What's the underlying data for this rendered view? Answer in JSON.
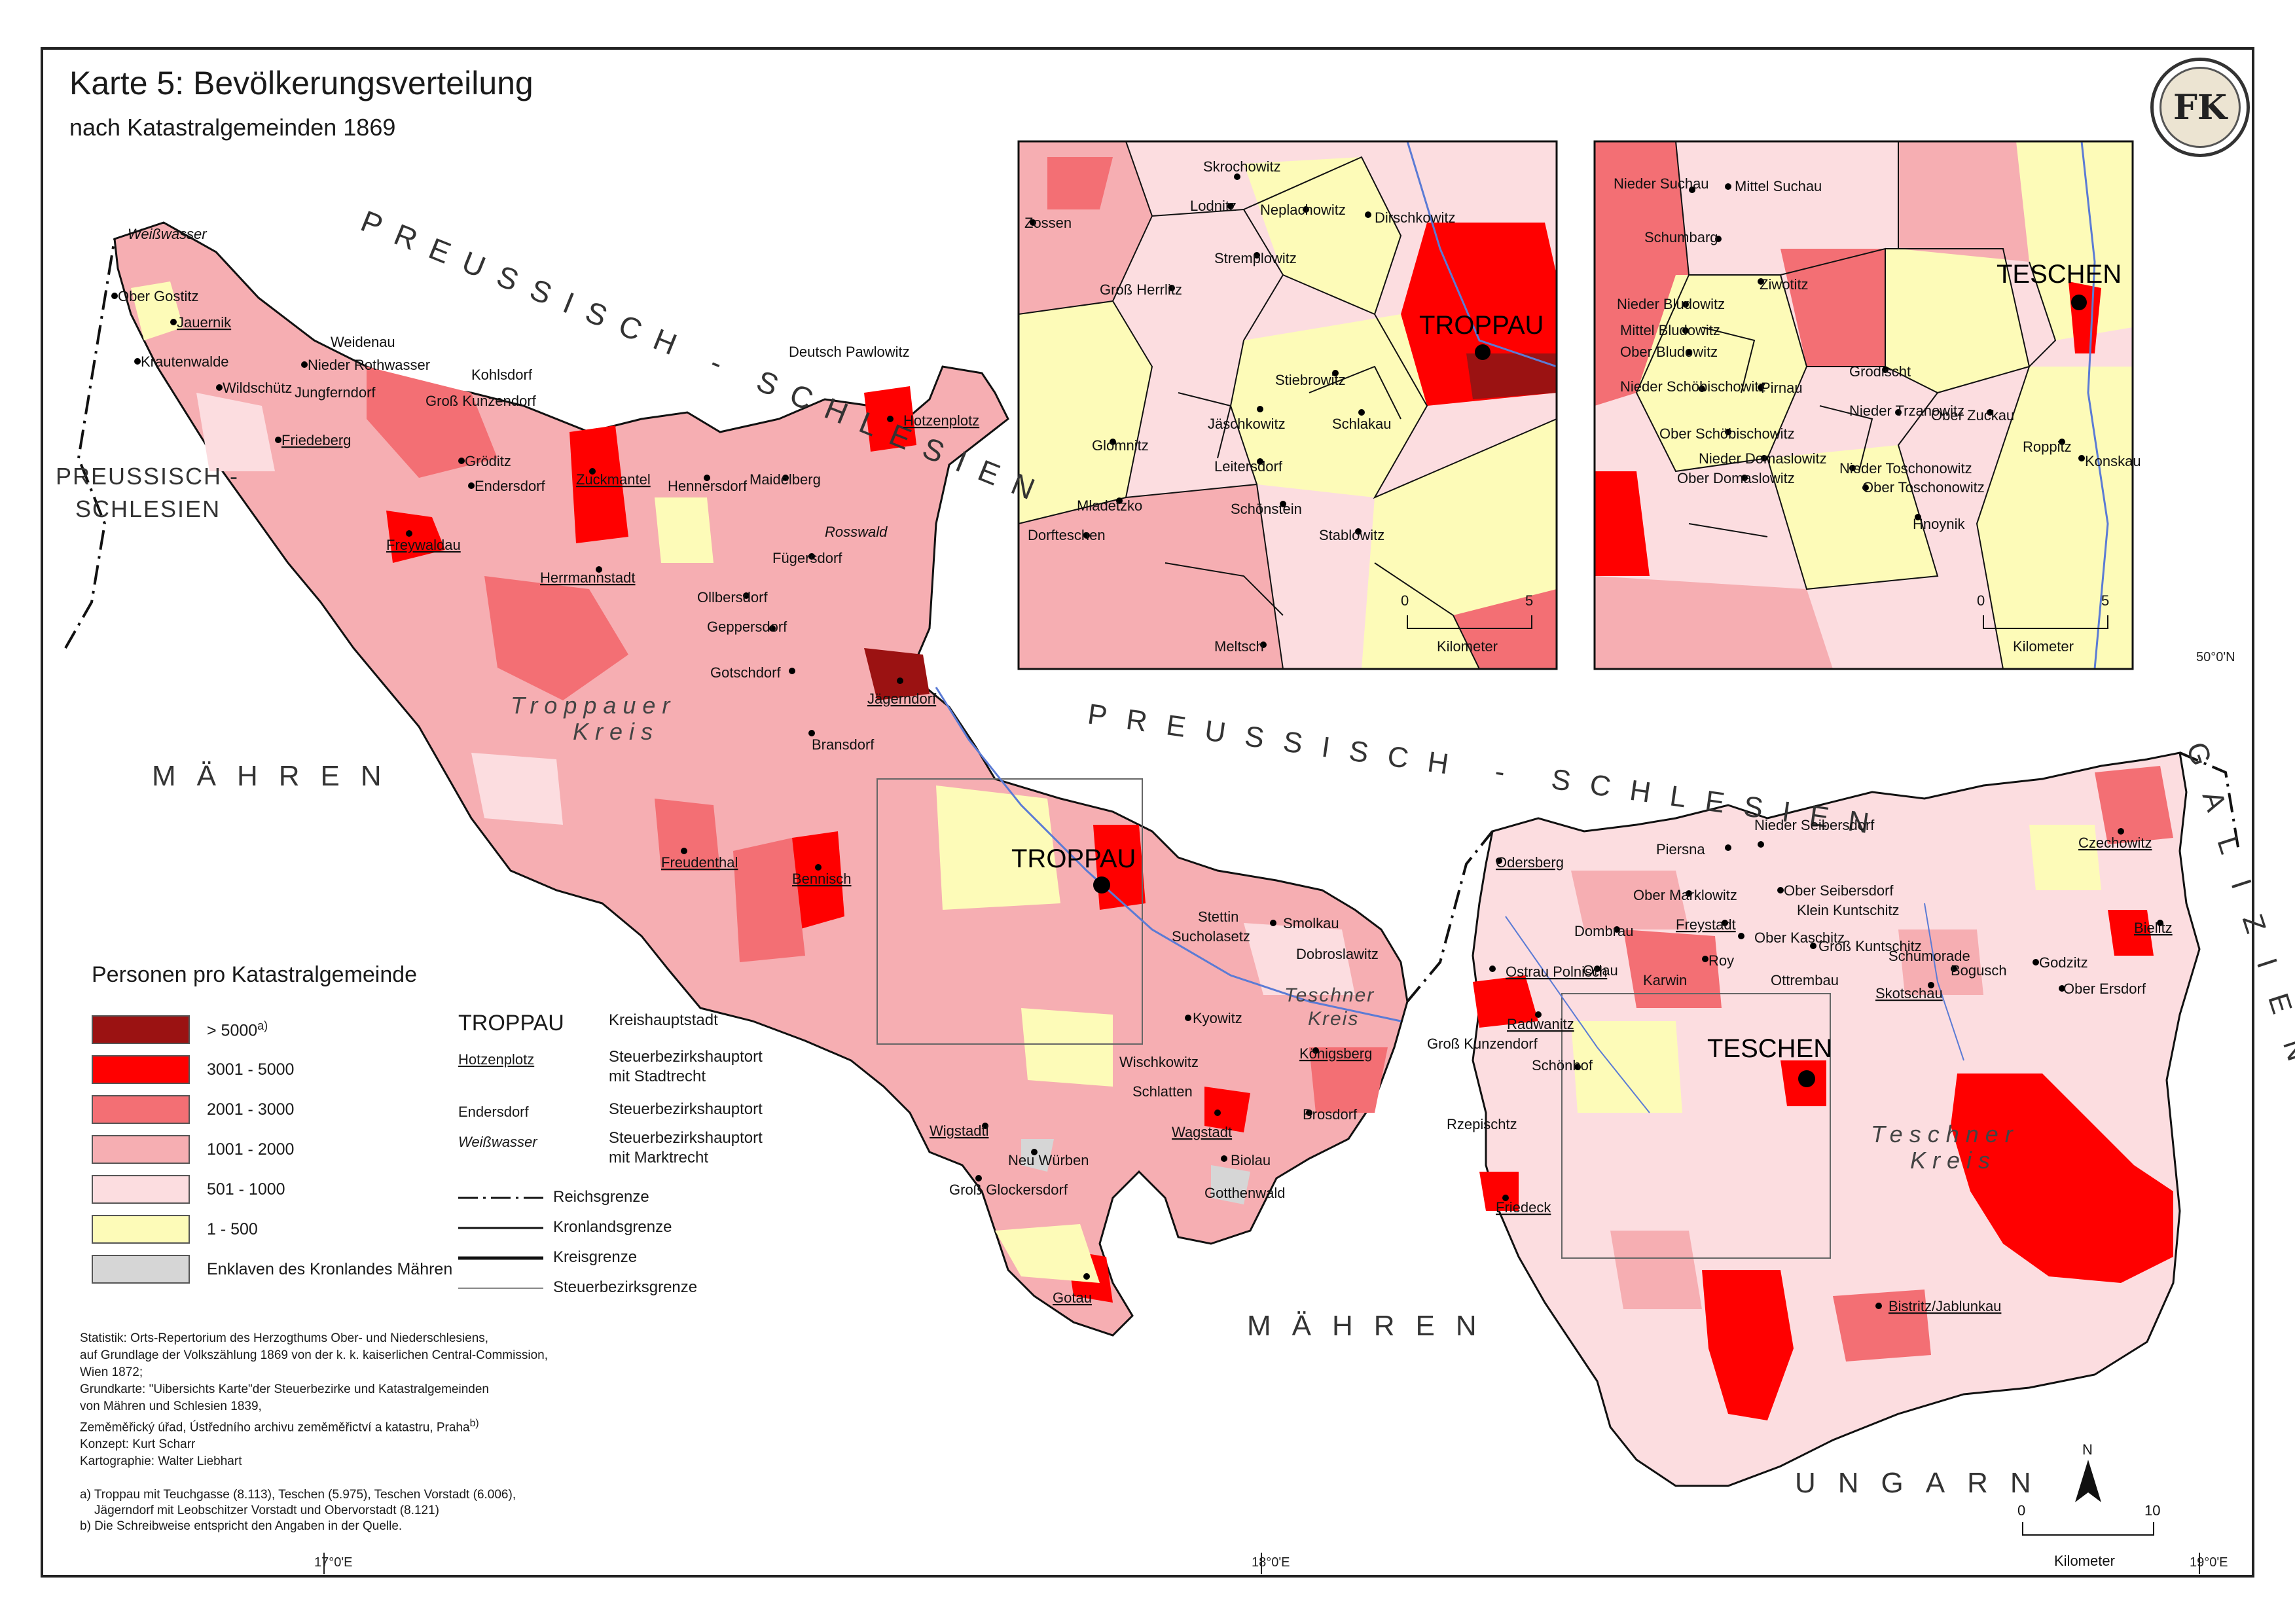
{
  "title": "Karte 5: Bevölkerungsverteilung",
  "subtitle": "nach Katastralgemeinden 1869",
  "logo_text": "FK",
  "regions": {
    "preussen_top": "PREUSSISCH - SCHLESIEN",
    "preussen_left_1": "PREUSSISCH -",
    "preussen_left_2": "SCHLESIEN",
    "preussen_center": "PREUSSISCH - SCHLESIEN",
    "maehren_west": "MÄHREN",
    "maehren_south": "MÄHREN",
    "ungarn": "UNGARN",
    "galizien": "GALIZIEN",
    "troppauer_kreis_1": "Troppauer",
    "troppauer_kreis_2": "Kreis",
    "teschner_kreis_small_1": "Teschner",
    "teschner_kreis_small_2": "Kreis",
    "teschner_kreis_1": "Teschner",
    "teschner_kreis_2": "Kreis"
  },
  "cities": {
    "troppau": "TROPPAU",
    "teschen": "TESCHEN"
  },
  "places": {
    "weisswasser": "Weißwasser",
    "ober_gostitz": "Ober Gostitz",
    "jauernik": "Jauernik",
    "krautenwalde": "Krautenwalde",
    "weidenau": "Weidenau",
    "nieder_rothwasser": "Nieder Rothwasser",
    "wildschuetz": "Wildschütz",
    "jungferndorf": "Jungferndorf",
    "gross_kunzendorf": "Groß Kunzendorf",
    "kohlsdorf": "Kohlsdorf",
    "friedeberg": "Friedeberg",
    "groeditz": "Gröditz",
    "endersdorf": "Endersdorf",
    "zuckmantel": "Zuckmantel",
    "freywaldau": "Freywaldau",
    "hennersdorf": "Hennersdorf",
    "maidelberg": "Maidelberg",
    "rosswald": "Rosswald",
    "hotzenplotz": "Hotzenplotz",
    "deutsch_pawlowitz": "Deutsch Pawlowitz",
    "fuegersdorf": "Fügersdorf",
    "herrmannstadt": "Herrmannstadt",
    "ollbersdorf": "Ollbersdorf",
    "geppersdorf": "Geppersdorf",
    "gotschdorf": "Gotschdorf",
    "jaegerndorf": "Jägerndorf",
    "bransdorf": "Bransdorf",
    "freudenthal": "Freudenthal",
    "bennisch": "Bennisch",
    "stettin": "Stettin",
    "sucholasetz": "Sucholasetz",
    "smolkau": "Smolkau",
    "dobroslawitz": "Dobroslawitz",
    "kyowitz": "Kyowitz",
    "koenigsberg": "Königsberg",
    "wischkowitz": "Wischkowitz",
    "schlatten": "Schlatten",
    "wagstadt": "Wagstadt",
    "brosdorf": "Brosdorf",
    "wigstadtl": "Wigstadtl",
    "neu_wuerben": "Neu Würben",
    "gross_glockersdorf": "Groß Glockersdorf",
    "biolau": "Biolau",
    "gotthenwald": "Gotthenwald",
    "gotau": "Gotau",
    "odersberg": "Odersberg",
    "piersna": "Piersna",
    "nieder_seibersdorf": "Nieder Seibersdorf",
    "ober_marklowitz": "Ober Marklowitz",
    "ober_seibersdorf": "Ober Seibersdorf",
    "klein_kuntschitz": "Klein Kuntschitz",
    "dombrau": "Dombrau",
    "freystadt": "Freystadt",
    "ober_kaschitz": "Ober Kaschitz",
    "gross_kuntschitz": "Groß Kuntschitz",
    "orlau": "Orlau",
    "karwin": "Karwin",
    "roy": "Roy",
    "ottrembau": "Ottrembau",
    "schumorade": "Schumorade",
    "skotschau": "Skotschau",
    "bogusch": "Bogusch",
    "godzitz": "Godzitz",
    "ober_ersdorf": "Ober Ersdorf",
    "czechowitz": "Czechowitz",
    "bielitz": "Bielitz",
    "ostrau_polnisch": "Ostrau Polnisch",
    "radwanitz": "Radwanitz",
    "gross_kunzendorf2": "Groß Kunzendorf",
    "schoenhof": "Schönhof",
    "rzepischtz": "Rzepischtz",
    "friedeck": "Friedeck",
    "bistrasitz": "Bistritz/Jablunkau"
  },
  "inset_troppau": {
    "places": [
      "Zossen",
      "Skrochowitz",
      "Lodnitz",
      "Neplachowitz",
      "Dirschkowitz",
      "Groß Herrlitz",
      "Stremplowitz",
      "Stiebrowitz",
      "Glomnitz",
      "Jäschkowitz",
      "Schlakau",
      "Leitersdorf",
      "Mladetzko",
      "Schönstein",
      "Dorfteschen",
      "Stablowitz",
      "Meltsch"
    ],
    "scale": {
      "zero": "0",
      "max": "5",
      "unit": "Kilometer"
    }
  },
  "inset_teschen": {
    "places": [
      "Nieder Suchau",
      "Mittel Suchau",
      "Schumbarg",
      "Ziwotitz",
      "Nieder Bludowitz",
      "Mittel Bludowitz",
      "Ober Bludowitz",
      "Grodischt",
      "Nieder Schöbischowitz",
      "Pirnau",
      "Ober Schöbischowitz",
      "Nieder Trzanowitz",
      "Ober Zuckau",
      "Roppitz",
      "Konskau",
      "Nieder Domaslowitz",
      "Nieder Toschonowitz",
      "Ober Domaslowitz",
      "Ober Toschonowitz",
      "Hnoynik"
    ],
    "scale": {
      "zero": "0",
      "max": "5",
      "unit": "Kilometer"
    }
  },
  "coords": {
    "lon_17": "17°0'E",
    "lon_18": "18°0'E",
    "lon_19": "19°0'E",
    "lat_50": "50°0'N"
  },
  "main_scale": {
    "zero": "0",
    "max": "10",
    "unit": "Kilometer",
    "north": "N"
  },
  "legend": {
    "title": "Personen pro Katastralgemeinde",
    "classes": [
      {
        "label": "> 5000",
        "sup": "a)",
        "color": "#9b1212"
      },
      {
        "label": "3001 - 5000",
        "color": "#ff0000"
      },
      {
        "label": "2001 - 3000",
        "color": "#f36f74"
      },
      {
        "label": "1001 - 2000",
        "color": "#f6aeb2"
      },
      {
        "label": "501 - 1000",
        "color": "#fcdde0"
      },
      {
        "label": "1 - 500",
        "color": "#fdfbb8"
      },
      {
        "label": "Enklaven des Kronlandes Mähren",
        "color": "#d6d6d6"
      }
    ],
    "symbols": [
      {
        "sample": "TROPPAU",
        "desc": "Kreishauptstadt"
      },
      {
        "sample": "Hotzenplotz",
        "desc1": "Steuerbezirkshauptort",
        "desc2": "mit Stadtrecht"
      },
      {
        "sample": "Endersdorf",
        "desc": "Steuerbezirkshauptort"
      },
      {
        "sample": "Weißwasser",
        "desc1": "Steuerbezirkshauptort",
        "desc2": "mit Marktrecht"
      }
    ],
    "lines": [
      "Reichsgrenze",
      "Kronlandsgrenze",
      "Kreisgrenze",
      "Steuerbezirksgrenze"
    ]
  },
  "notes": [
    "Statistik: Orts-Repertorium des Herzogthums Ober- und Niederschlesiens,",
    "auf Grundlage der Volkszählung 1869 von der k. k. kaiserlichen Central-Commission,",
    "Wien 1872;",
    "Grundkarte: \"Uibersichts Karte\"der Steuerbezirke und Katastralgemeinden",
    "von Mähren und Schlesien 1839,",
    "Zeměměřický úřad, Ústředního archivu zeměměřictví a katastru, Praha",
    "Konzept: Kurt Scharr",
    "Kartographie: Walter Liebhart"
  ],
  "notes_sup": "b)",
  "footnotes": [
    "a) Troppau mit Teuchgasse (8.113), Teschen (5.975), Teschen Vorstadt (6.006),",
    "Jägerndorf mit Leobschitzer Vorstadt und Obervorstadt (8.121)",
    "b) Die Schreibweise entspricht den Angaben in der Quelle."
  ]
}
